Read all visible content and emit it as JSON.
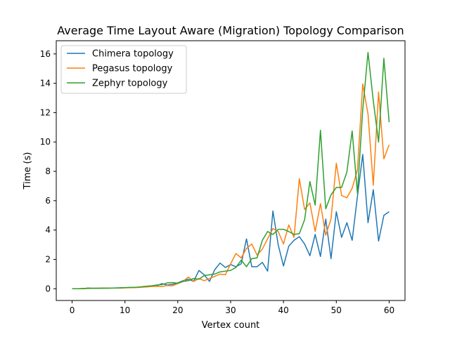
{
  "chart_data": {
    "type": "line",
    "title": "Average Time Layout Aware (Migration) Topology Comparison",
    "xlabel": "Vertex count",
    "ylabel": "Time (s)",
    "xlim": [
      -3,
      63
    ],
    "ylim": [
      -0.8,
      16.9
    ],
    "xticks": [
      0,
      10,
      20,
      30,
      40,
      50,
      60
    ],
    "yticks": [
      0,
      2,
      4,
      6,
      8,
      10,
      12,
      14,
      16
    ],
    "grid": false,
    "legend_position": "top-left",
    "x": [
      0,
      1,
      2,
      3,
      4,
      5,
      6,
      7,
      8,
      9,
      10,
      11,
      12,
      13,
      14,
      15,
      16,
      17,
      18,
      19,
      20,
      21,
      22,
      23,
      24,
      25,
      26,
      27,
      28,
      29,
      30,
      31,
      32,
      33,
      34,
      35,
      36,
      37,
      38,
      39,
      40,
      41,
      42,
      43,
      44,
      45,
      46,
      47,
      48,
      49,
      50,
      51,
      52,
      53,
      54,
      55,
      56,
      57,
      58,
      59,
      60
    ],
    "series": [
      {
        "name": "Chimera topology",
        "color": "#1f77b4",
        "values": [
          0.0,
          0.0,
          0.0,
          0.05,
          0.03,
          0.04,
          0.05,
          0.05,
          0.05,
          0.06,
          0.07,
          0.08,
          0.09,
          0.12,
          0.15,
          0.18,
          0.2,
          0.35,
          0.25,
          0.3,
          0.4,
          0.55,
          0.65,
          0.5,
          1.25,
          0.95,
          0.5,
          1.3,
          1.75,
          1.45,
          1.65,
          1.5,
          1.7,
          3.4,
          1.5,
          1.5,
          1.8,
          1.2,
          5.3,
          3.0,
          1.55,
          2.9,
          3.3,
          3.55,
          3.05,
          2.25,
          3.7,
          2.2,
          4.75,
          2.05,
          5.25,
          3.5,
          4.5,
          3.3,
          6.3,
          9.15,
          4.5,
          6.75,
          3.25,
          5.0,
          5.25
        ]
      },
      {
        "name": "Pegasus topology",
        "color": "#ff7f0e",
        "values": [
          0.0,
          0.0,
          0.0,
          0.03,
          0.03,
          0.04,
          0.04,
          0.05,
          0.05,
          0.05,
          0.06,
          0.07,
          0.08,
          0.1,
          0.12,
          0.15,
          0.17,
          0.15,
          0.22,
          0.2,
          0.35,
          0.5,
          0.8,
          0.5,
          0.7,
          0.55,
          0.7,
          0.85,
          1.0,
          0.95,
          1.7,
          2.4,
          2.1,
          2.75,
          3.05,
          2.3,
          2.7,
          3.4,
          4.1,
          3.9,
          3.05,
          4.35,
          3.5,
          7.5,
          5.4,
          5.85,
          3.9,
          5.8,
          3.65,
          4.75,
          8.55,
          6.35,
          6.2,
          6.85,
          8.1,
          13.95,
          11.9,
          7.05,
          13.4,
          8.85,
          9.8
        ]
      },
      {
        "name": "Zephyr topology",
        "color": "#2ca02c",
        "values": [
          0.0,
          0.0,
          0.02,
          0.02,
          0.03,
          0.03,
          0.04,
          0.04,
          0.05,
          0.06,
          0.08,
          0.09,
          0.1,
          0.13,
          0.17,
          0.2,
          0.25,
          0.28,
          0.4,
          0.42,
          0.38,
          0.5,
          0.55,
          0.7,
          0.65,
          0.9,
          0.95,
          1.0,
          1.15,
          1.2,
          1.25,
          1.45,
          1.95,
          1.5,
          2.05,
          2.1,
          3.3,
          3.9,
          3.7,
          4.05,
          4.05,
          3.9,
          3.7,
          3.75,
          4.7,
          7.3,
          5.7,
          10.8,
          5.45,
          6.4,
          6.9,
          6.9,
          7.95,
          10.75,
          6.5,
          12.2,
          16.1,
          12.8,
          10.0,
          15.7,
          11.35
        ]
      }
    ]
  }
}
